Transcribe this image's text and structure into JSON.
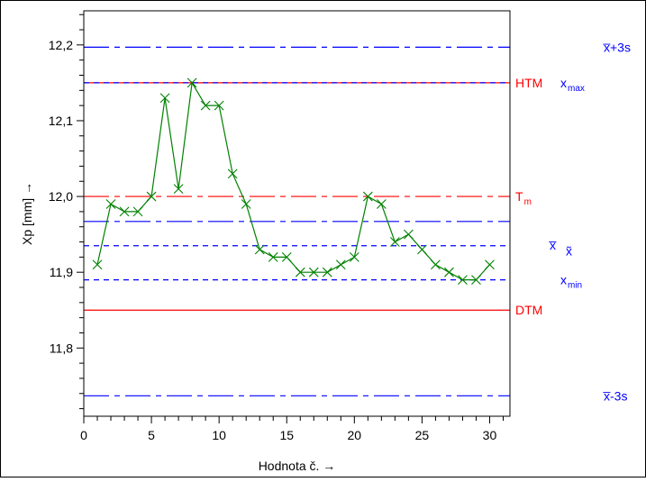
{
  "chart_data": {
    "type": "line",
    "title": "",
    "xlabel": "Hodnota č. →",
    "ylabel": "Xp [mm] →",
    "xlim": [
      0,
      31.5
    ],
    "ylim": [
      11.71,
      12.245
    ],
    "x_ticks": [
      0,
      5,
      10,
      15,
      20,
      25,
      30
    ],
    "x_tick_labels": [
      "0",
      "5",
      "10",
      "15",
      "20",
      "25",
      "30"
    ],
    "y_ticks": [
      11.8,
      11.9,
      12.0,
      12.1,
      12.2
    ],
    "y_tick_labels": [
      "11,8",
      "11,9",
      "12,0",
      "12,1",
      "12,2"
    ],
    "grid": false,
    "legend": "none",
    "series": [
      {
        "color": "#008000",
        "marker": "x",
        "x": [
          1,
          2,
          3,
          4,
          5,
          6,
          7,
          8,
          9,
          10,
          11,
          12,
          13,
          14,
          15,
          16,
          17,
          18,
          19,
          20,
          21,
          22,
          23,
          24,
          25,
          26,
          27,
          28,
          29,
          30
        ],
        "values": [
          11.91,
          11.99,
          11.98,
          11.98,
          12.0,
          12.13,
          12.01,
          12.15,
          12.12,
          12.12,
          12.03,
          11.99,
          11.93,
          11.92,
          11.92,
          11.9,
          11.9,
          11.9,
          11.91,
          11.92,
          12.0,
          11.99,
          11.94,
          11.95,
          11.93,
          11.91,
          11.9,
          11.89,
          11.89,
          11.91
        ]
      }
    ],
    "reference_lines": [
      {
        "id": "x-plus-3s",
        "value": 12.197,
        "color": "#0000ff",
        "dash": "dashdot",
        "label_main": "x̅+3s",
        "label_sub": ""
      },
      {
        "id": "htm",
        "value": 12.15,
        "color": "#ff0000",
        "dash": "solid",
        "label_main": "HTM",
        "label_sub": ""
      },
      {
        "id": "x-max",
        "value": 12.15,
        "color": "#0000ff",
        "dash": "dashed",
        "label_main": "x",
        "label_sub": "max"
      },
      {
        "id": "tm",
        "value": 12.0,
        "color": "#ff0000",
        "dash": "dashdot",
        "label_main": "T",
        "label_sub": "m"
      },
      {
        "id": "x-mean",
        "value": 11.967,
        "color": "#0000ff",
        "dash": "dashdot",
        "label_main": "x̅",
        "label_sub": ""
      },
      {
        "id": "x-median",
        "value": 11.935,
        "color": "#0000ff",
        "dash": "dashed",
        "label_main": "x̃",
        "label_sub": ""
      },
      {
        "id": "x-min",
        "value": 11.89,
        "color": "#0000ff",
        "dash": "dashed",
        "label_main": "x",
        "label_sub": "min"
      },
      {
        "id": "dtm",
        "value": 11.85,
        "color": "#ff0000",
        "dash": "solid",
        "label_main": "DTM",
        "label_sub": ""
      },
      {
        "id": "x-minus-3s",
        "value": 11.737,
        "color": "#0000ff",
        "dash": "dashdot",
        "label_main": "x̅-3s",
        "label_sub": ""
      }
    ]
  }
}
